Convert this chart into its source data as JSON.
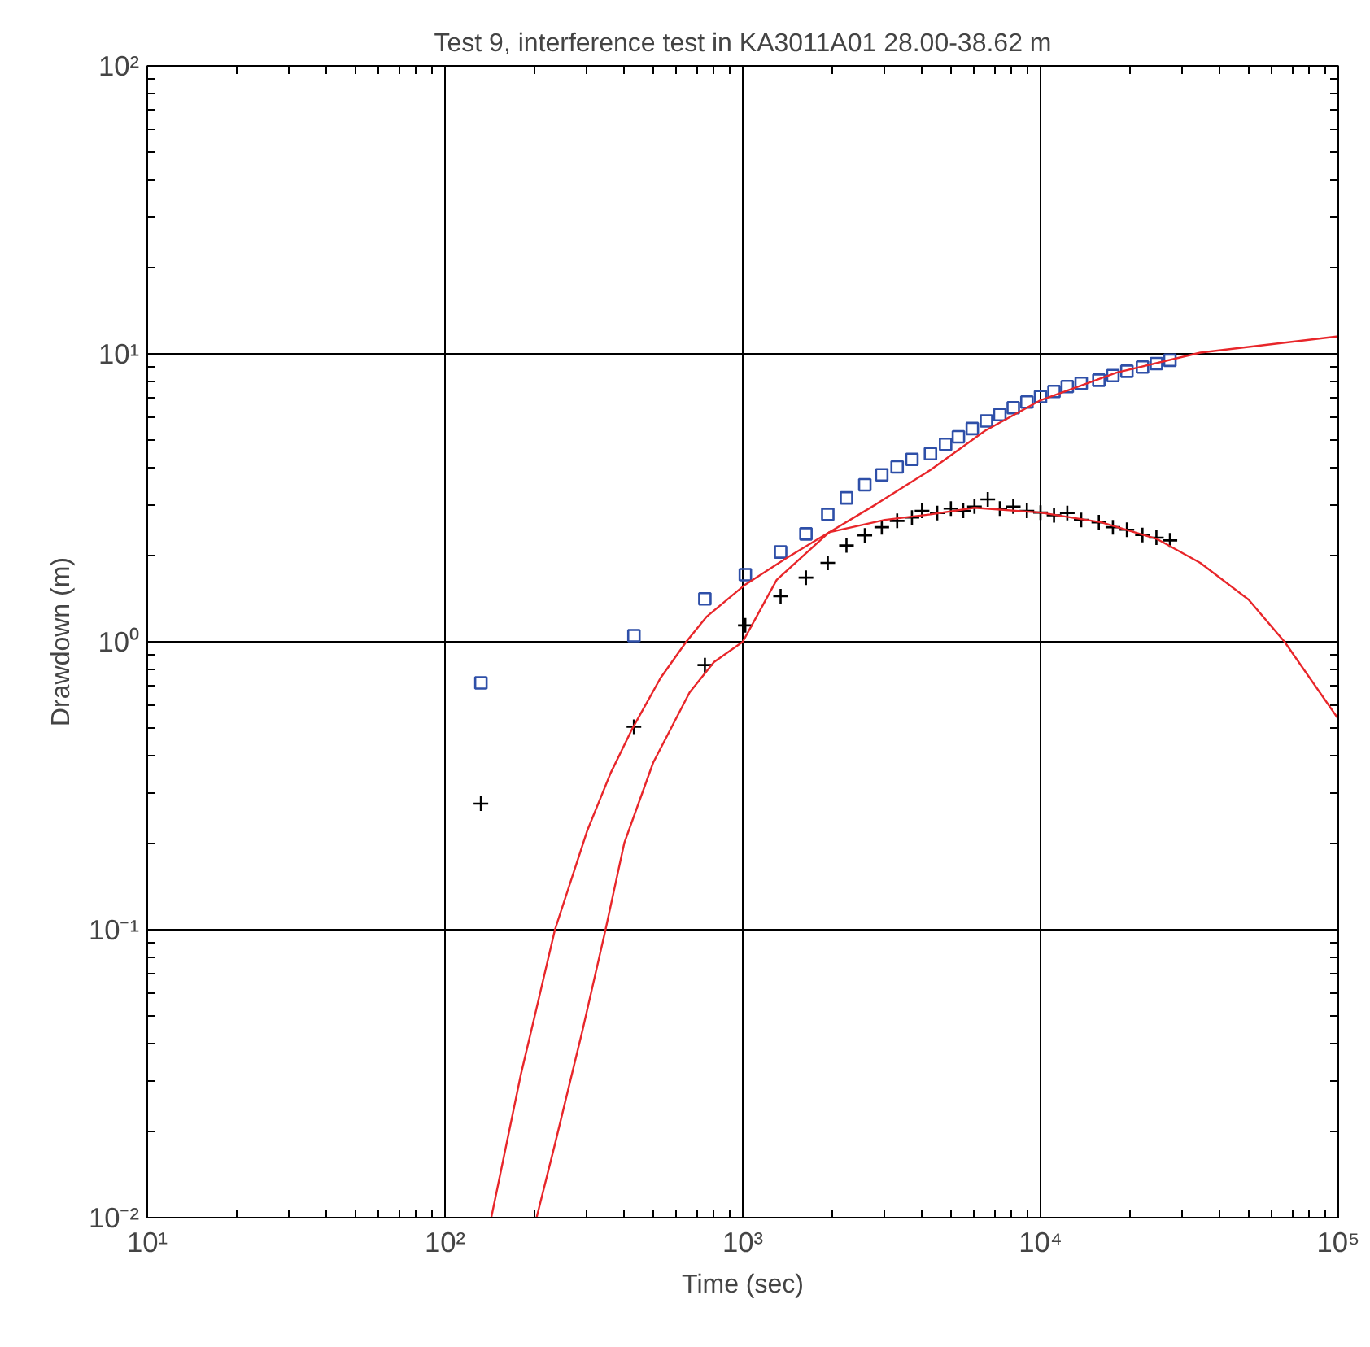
{
  "chart_data": {
    "type": "scatter",
    "title": "Test 9, interference test in KA3011A01 28.00-38.62 m",
    "xlabel": "Time (sec)",
    "ylabel": "Drawdown (m)",
    "log": "xy",
    "grid": true,
    "xlim": [
      10,
      100000
    ],
    "ylim": [
      0.01,
      100
    ],
    "xticks": [
      {
        "value": 10,
        "label": "10¹"
      },
      {
        "value": 100,
        "label": "10²"
      },
      {
        "value": 1000,
        "label": "10³"
      },
      {
        "value": 10000,
        "label": "10⁴"
      },
      {
        "value": 100000,
        "label": "10⁵"
      }
    ],
    "yticks": [
      {
        "value": 0.01,
        "label": "10⁻²"
      },
      {
        "value": 0.1,
        "label": "10⁻¹"
      },
      {
        "value": 1,
        "label": "10⁰"
      },
      {
        "value": 10,
        "label": "10¹"
      },
      {
        "value": 100,
        "label": "10²"
      }
    ],
    "series": [
      {
        "marker": "square",
        "color": "#2e4fa8",
        "x": [
          132,
          431,
          746,
          1020,
          1340,
          1630,
          1930,
          2230,
          2570,
          2930,
          3300,
          3700,
          4270,
          4800,
          5300,
          5900,
          6580,
          7300,
          8100,
          9000,
          10000,
          11100,
          12300,
          13700,
          15700,
          17500,
          19500,
          22000,
          24500,
          27200
        ],
        "values": [
          0.72,
          1.05,
          1.41,
          1.71,
          2.05,
          2.37,
          2.77,
          3.16,
          3.51,
          3.8,
          4.05,
          4.3,
          4.5,
          4.85,
          5.15,
          5.5,
          5.85,
          6.15,
          6.5,
          6.8,
          7.1,
          7.4,
          7.7,
          7.9,
          8.1,
          8.4,
          8.7,
          9.0,
          9.25,
          9.5
        ]
      },
      {
        "marker": "cross",
        "color": "#000000",
        "x": [
          132,
          431,
          746,
          1020,
          1340,
          1630,
          1930,
          2230,
          2570,
          2930,
          3300,
          3700,
          4000,
          4500,
          5000,
          5500,
          6000,
          6650,
          7300,
          8100,
          9000,
          10000,
          11100,
          12300,
          13700,
          15700,
          17500,
          19500,
          22000,
          24500,
          27200
        ],
        "values": [
          0.274,
          0.507,
          0.83,
          1.14,
          1.44,
          1.67,
          1.88,
          2.16,
          2.34,
          2.5,
          2.63,
          2.7,
          2.85,
          2.8,
          2.9,
          2.85,
          2.95,
          3.12,
          2.9,
          2.95,
          2.85,
          2.81,
          2.75,
          2.8,
          2.65,
          2.6,
          2.5,
          2.45,
          2.35,
          2.3,
          2.25
        ]
      },
      {
        "type": "line",
        "marker": "none",
        "color": "#e8262a",
        "x": [
          143,
          180,
          200,
          234,
          300,
          360,
          426,
          530,
          646,
          755,
          1020,
          1400,
          1950,
          2800,
          4270,
          6500,
          10000,
          18000,
          34400,
          100000
        ],
        "values": [
          0.01,
          0.0316,
          0.05,
          0.1,
          0.22,
          0.35,
          0.5,
          0.75,
          1.0,
          1.22,
          1.58,
          1.95,
          2.4,
          3.0,
          3.95,
          5.4,
          6.9,
          8.6,
          10.1,
          11.5
        ]
      },
      {
        "type": "line",
        "marker": "none",
        "color": "#e8262a",
        "x": [
          203,
          234,
          290,
          346,
          400,
          500,
          663,
          800,
          1000,
          1300,
          1950,
          3000,
          4270,
          6000,
          10000,
          16000,
          24500,
          34400,
          50000,
          66000,
          100000
        ],
        "values": [
          0.01,
          0.018,
          0.045,
          0.1,
          0.2,
          0.38,
          0.667,
          0.85,
          1.0,
          1.64,
          2.4,
          2.65,
          2.77,
          2.92,
          2.81,
          2.6,
          2.28,
          1.88,
          1.4,
          1.0,
          0.54
        ]
      }
    ]
  }
}
